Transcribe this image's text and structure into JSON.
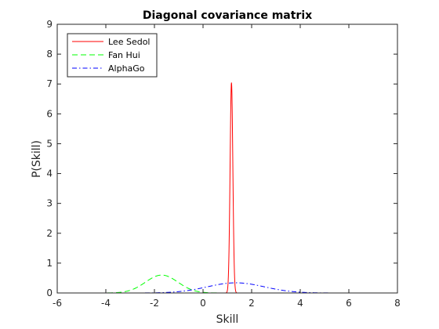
{
  "chart_data": {
    "type": "line",
    "title": "Diagonal covariance matrix",
    "xlabel": "Skill",
    "ylabel": "P(Skill)",
    "xlim": [
      -6,
      8
    ],
    "ylim": [
      0,
      9
    ],
    "xticks": [
      -6,
      -4,
      -2,
      0,
      2,
      4,
      6,
      8
    ],
    "yticks": [
      0,
      1,
      2,
      3,
      4,
      5,
      6,
      7,
      8,
      9
    ],
    "grid": false,
    "legend_position": "top-left",
    "series": [
      {
        "name": "Lee Sedol",
        "color": "#ff0000",
        "style": "solid",
        "distribution": "normal",
        "mean": 1.17,
        "peak": 7.05,
        "domain": [
          -5,
          7
        ]
      },
      {
        "name": "Fan Hui",
        "color": "#00ff00",
        "style": "dashed",
        "distribution": "normal",
        "mean": -1.7,
        "peak": 0.6,
        "domain": [
          -5,
          7
        ]
      },
      {
        "name": "AlphaGo",
        "color": "#0000ff",
        "style": "dashdot",
        "distribution": "normal",
        "mean": 1.35,
        "peak": 0.34,
        "domain": [
          -5,
          7
        ]
      }
    ]
  }
}
